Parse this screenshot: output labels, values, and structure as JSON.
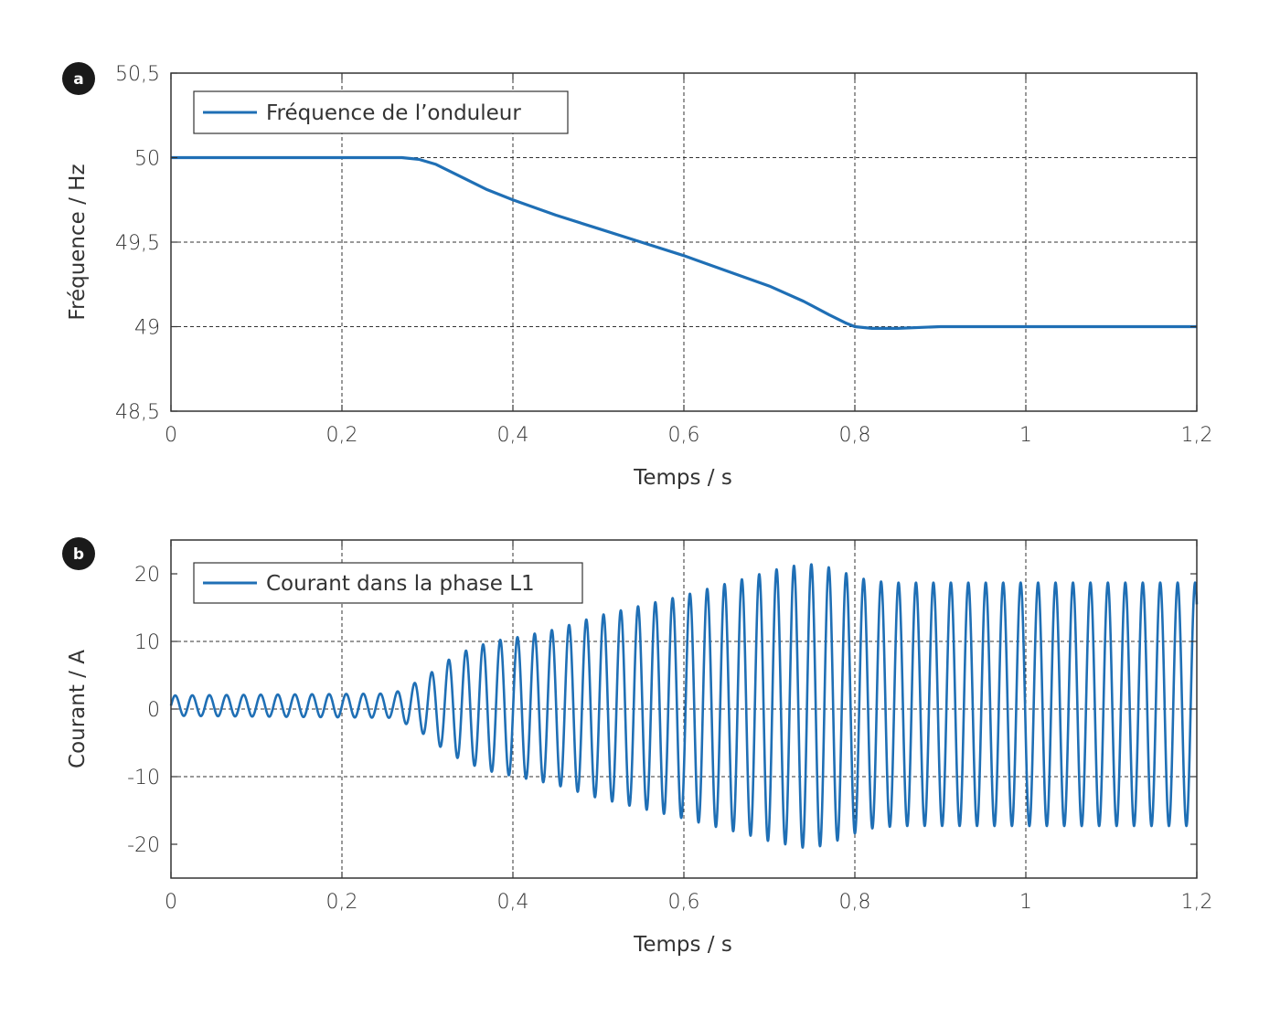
{
  "colors": {
    "series": "#1f6fb5",
    "axis": "#333333",
    "badge": "#1a1a1a"
  },
  "chart_data": [
    {
      "panel_label": "a",
      "type": "line",
      "xlabel": "Temps / s",
      "ylabel": "Fréquence / Hz",
      "xlim": [
        0,
        1.2
      ],
      "ylim": [
        48.5,
        50.5
      ],
      "xticks": [
        0,
        0.2,
        0.4,
        0.6,
        0.8,
        1.0,
        1.2
      ],
      "xtick_labels": [
        "0",
        "0,2",
        "0,4",
        "0,6",
        "0,8",
        "1",
        "1,2"
      ],
      "yticks": [
        48.5,
        49,
        49.5,
        50,
        50.5
      ],
      "ytick_labels": [
        "48,5",
        "49",
        "49,5",
        "50",
        "50,5"
      ],
      "grid": true,
      "legend_position": "top-left",
      "series": [
        {
          "name": "Fréquence de l’onduleur",
          "x": [
            0,
            0.1,
            0.2,
            0.25,
            0.27,
            0.29,
            0.31,
            0.33,
            0.35,
            0.37,
            0.4,
            0.45,
            0.5,
            0.55,
            0.6,
            0.65,
            0.7,
            0.74,
            0.77,
            0.79,
            0.8,
            0.82,
            0.85,
            0.9,
            0.95,
            1.0,
            1.1,
            1.2
          ],
          "y": [
            50.0,
            50.0,
            50.0,
            50.0,
            50.0,
            49.99,
            49.96,
            49.91,
            49.86,
            49.81,
            49.75,
            49.66,
            49.58,
            49.5,
            49.42,
            49.33,
            49.24,
            49.15,
            49.07,
            49.02,
            49.0,
            48.99,
            48.99,
            49.0,
            49.0,
            49.0,
            49.0,
            49.0
          ]
        }
      ]
    },
    {
      "panel_label": "b",
      "type": "line",
      "xlabel": "Temps / s",
      "ylabel": "Courant / A",
      "xlim": [
        0,
        1.2
      ],
      "ylim": [
        -25,
        25
      ],
      "xticks": [
        0,
        0.2,
        0.4,
        0.6,
        0.8,
        1.0,
        1.2
      ],
      "xtick_labels": [
        "0",
        "0,2",
        "0,4",
        "0,6",
        "0,8",
        "1",
        "1,2"
      ],
      "yticks": [
        -20,
        -10,
        0,
        10,
        20
      ],
      "ytick_labels": [
        "-20",
        "-10",
        "0",
        "10",
        "20"
      ],
      "grid": true,
      "legend_position": "top-left",
      "series": [
        {
          "name": "Courant dans la phase L1",
          "waveform": "sinusoid",
          "frequency_hz": 50,
          "frequency_profile_from_panel": "a",
          "amplitude_envelope": {
            "t": [
              0,
              0.26,
              0.28,
              0.3,
              0.32,
              0.34,
              0.36,
              0.38,
              0.4,
              0.45,
              0.5,
              0.55,
              0.6,
              0.62,
              0.65,
              0.68,
              0.7,
              0.72,
              0.74,
              0.76,
              0.78,
              0.8,
              0.82,
              0.85,
              1.0,
              1.2
            ],
            "peak": [
              1.5,
              1.8,
              3.0,
              4.5,
              6.5,
              8.0,
              9.0,
              9.8,
              10.2,
              11.5,
              13.5,
              15.0,
              16.5,
              17.2,
              18.2,
              19.2,
              20.0,
              20.5,
              21.0,
              20.8,
              20.0,
              19.0,
              18.3,
              18.0,
              18.0,
              18.0
            ]
          },
          "offset_envelope": {
            "t": [
              0,
              0.27,
              0.4,
              0.6,
              0.75,
              0.85,
              1.2
            ],
            "offset": [
              0.5,
              0.5,
              0.3,
              0.3,
              0.5,
              0.7,
              0.7
            ]
          }
        }
      ]
    }
  ],
  "legends": {
    "a": "Fréquence de l’onduleur",
    "b": "Courant dans la phase L1"
  }
}
